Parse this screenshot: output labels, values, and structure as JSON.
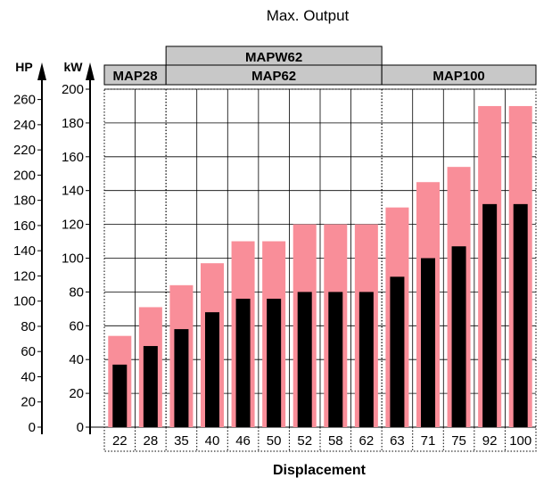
{
  "chart_data": {
    "type": "bar",
    "title": "Max. Output",
    "xlabel": "Displacement",
    "y_left_unit": "HP",
    "y_right_unit": "kW",
    "hp_ticks": [
      "0",
      "20",
      "40",
      "60",
      "80",
      "100",
      "120",
      "140",
      "160",
      "180",
      "200",
      "220",
      "240",
      "260"
    ],
    "kw_ticks": [
      "0",
      "20",
      "40",
      "60",
      "80",
      "100",
      "120",
      "140",
      "160",
      "180",
      "200"
    ],
    "ylim_kw": [
      0,
      200
    ],
    "categories": [
      "22",
      "28",
      "35",
      "40",
      "46",
      "50",
      "52",
      "58",
      "62",
      "63",
      "71",
      "75",
      "92",
      "100"
    ],
    "series": [
      {
        "values": [
          54,
          71,
          84,
          97,
          110,
          110,
          120,
          120,
          120,
          130,
          145,
          154,
          190,
          190
        ]
      },
      {
        "values": [
          37,
          48,
          58,
          68,
          76,
          76,
          80,
          80,
          80,
          89,
          100,
          107,
          132,
          132
        ]
      }
    ],
    "groups": [
      {
        "label": "MAP28",
        "from": 0,
        "to": 1
      },
      {
        "label": "MAP62",
        "from": 2,
        "to": 8
      },
      {
        "label": "MAP100",
        "from": 9,
        "to": 13
      }
    ],
    "top_group": {
      "label": "MAPW62",
      "from": 2,
      "to": 8
    },
    "colors": {
      "series_1": "#f98e99",
      "series_2": "#000000",
      "group_box": "#c8c8c8",
      "grid": "#000000"
    },
    "grid": true
  }
}
